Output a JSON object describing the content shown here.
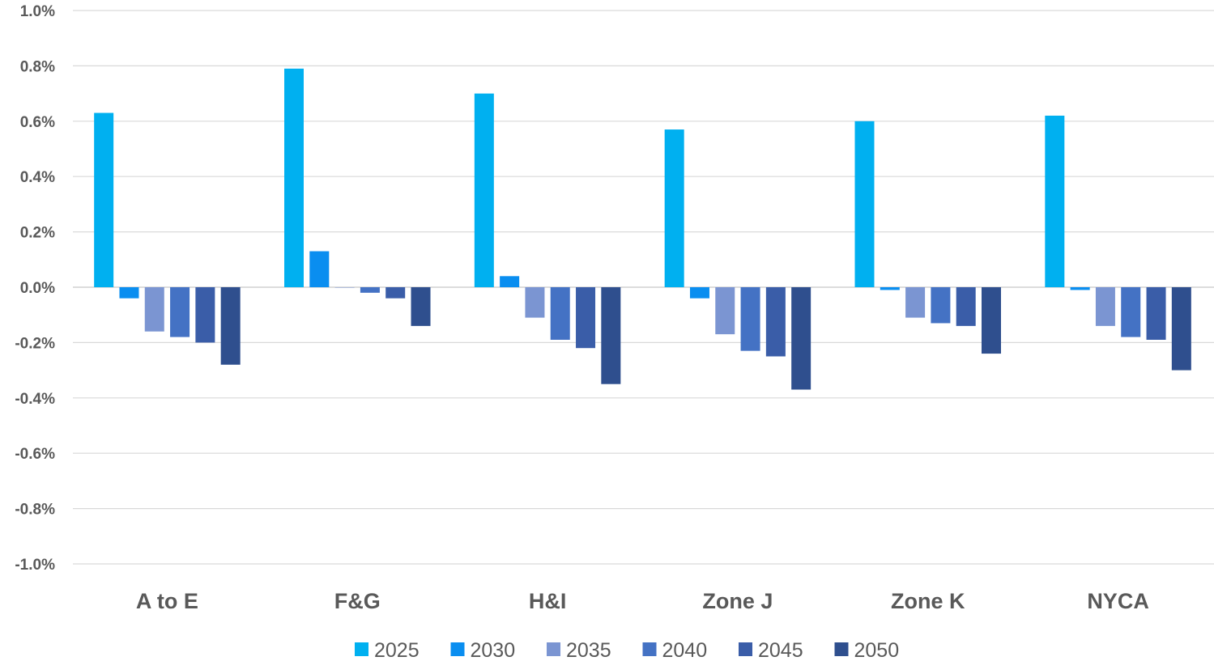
{
  "chart_data": {
    "type": "bar",
    "title": "",
    "xlabel": "",
    "ylabel": "",
    "ylim": [
      -1.0,
      1.0
    ],
    "y_tick_values": [
      1.0,
      0.8,
      0.6,
      0.4,
      0.2,
      0.0,
      -0.2,
      -0.4,
      -0.6,
      -0.8,
      -1.0
    ],
    "y_tick_labels": [
      "1.0%",
      "0.8%",
      "0.6%",
      "0.4%",
      "0.2%",
      "0.0%",
      "-0.2%",
      "-0.4%",
      "-0.6%",
      "-0.8%",
      "-1.0%"
    ],
    "grid": true,
    "legend_position": "bottom",
    "categories": [
      "A to E",
      "F&G",
      "H&I",
      "Zone J",
      "Zone K",
      "NYCA"
    ],
    "series": [
      {
        "name": "2025",
        "color": "#00b0f0",
        "values": [
          0.63,
          0.79,
          0.7,
          0.57,
          0.6,
          0.62
        ]
      },
      {
        "name": "2030",
        "color": "#0a8ef0",
        "values": [
          -0.04,
          0.13,
          0.04,
          -0.04,
          -0.01,
          -0.01
        ]
      },
      {
        "name": "2035",
        "color": "#7b95d2",
        "values": [
          -0.16,
          0.0,
          -0.11,
          -0.17,
          -0.11,
          -0.14
        ]
      },
      {
        "name": "2040",
        "color": "#4472c4",
        "values": [
          -0.18,
          -0.02,
          -0.19,
          -0.23,
          -0.13,
          -0.18
        ]
      },
      {
        "name": "2045",
        "color": "#3a5da8",
        "values": [
          -0.2,
          -0.04,
          -0.22,
          -0.25,
          -0.14,
          -0.19
        ]
      },
      {
        "name": "2050",
        "color": "#2f4f8e",
        "values": [
          -0.28,
          -0.14,
          -0.35,
          -0.37,
          -0.24,
          -0.3
        ]
      }
    ]
  }
}
